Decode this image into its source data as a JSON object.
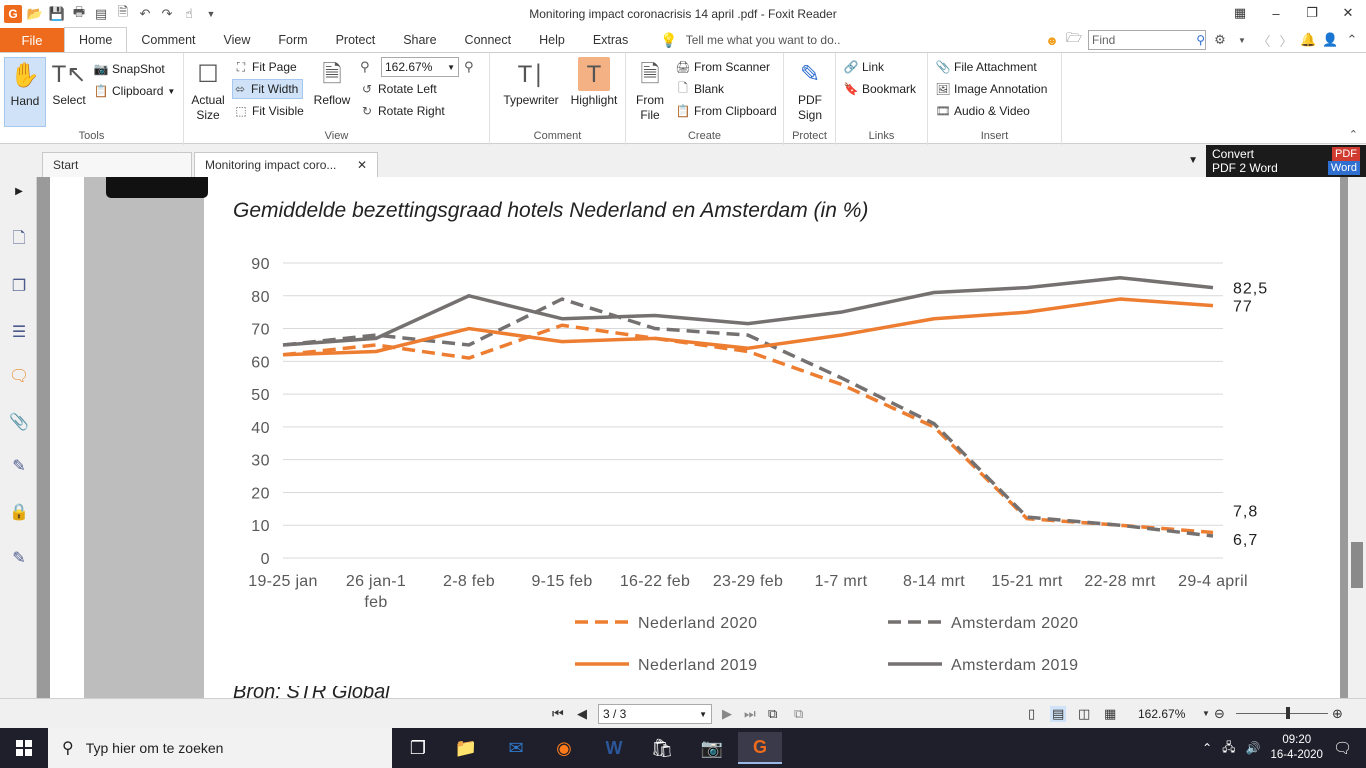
{
  "window": {
    "title": "Monitoring impact coronacrisis 14 april .pdf - Foxit Reader",
    "app_logo": "G",
    "controls": [
      "restore-small-icon",
      "minimize-icon",
      "restore-icon",
      "close-icon"
    ]
  },
  "ribbon_tabs": {
    "file": "File",
    "tabs": [
      "Home",
      "Comment",
      "View",
      "Form",
      "Protect",
      "Share",
      "Connect",
      "Help",
      "Extras"
    ],
    "active": "Home",
    "tell_me": "Tell me what you want to do..",
    "find_placeholder": "Find"
  },
  "ribbon": {
    "tools": {
      "label": "Tools",
      "hand": "Hand",
      "select": "Select",
      "snapshot": "SnapShot",
      "clipboard": "Clipboard"
    },
    "view": {
      "label": "View",
      "actual_size_1": "Actual",
      "actual_size_2": "Size",
      "fit_page": "Fit Page",
      "fit_width": "Fit Width",
      "fit_visible": "Fit Visible",
      "reflow": "Reflow",
      "zoom": "162.67%",
      "rotate_left": "Rotate Left",
      "rotate_right": "Rotate Right"
    },
    "comment": {
      "label": "Comment",
      "typewriter": "Typewriter",
      "highlight": "Highlight"
    },
    "create": {
      "label": "Create",
      "from_file_1": "From",
      "from_file_2": "File",
      "from_scanner": "From Scanner",
      "blank": "Blank",
      "from_clipboard": "From Clipboard"
    },
    "protect": {
      "label": "Protect",
      "pdf_sign_1": "PDF",
      "pdf_sign_2": "Sign"
    },
    "links": {
      "label": "Links",
      "link": "Link",
      "bookmark": "Bookmark"
    },
    "insert": {
      "label": "Insert",
      "file_attachment": "File Attachment",
      "image_annotation": "Image Annotation",
      "audio_video": "Audio & Video"
    }
  },
  "doc_tabs": {
    "start": "Start",
    "document": "Monitoring impact coro...",
    "convert_1": "Convert",
    "convert_2": "PDF 2 Word",
    "badge_pdf": "PDF",
    "badge_word": "Word"
  },
  "document": {
    "cutoff_text": "Bron: STR Global"
  },
  "chart_data": {
    "type": "line",
    "title": "Gemiddelde bezettingsgraad hotels Nederland en Amsterdam (in %)",
    "categories": [
      "19-25 jan",
      "26 jan-1 feb",
      "2-8 feb",
      "9-15 feb",
      "16-22 feb",
      "23-29 feb",
      "1-7 mrt",
      "8-14 mrt",
      "15-21 mrt",
      "22-28 mrt",
      "29-4 april"
    ],
    "category_lines": [
      [
        "19-25 jan"
      ],
      [
        "26 jan-1",
        "feb"
      ],
      [
        "2-8 feb"
      ],
      [
        "9-15 feb"
      ],
      [
        "16-22 feb"
      ],
      [
        "23-29 feb"
      ],
      [
        "1-7 mrt"
      ],
      [
        "8-14 mrt"
      ],
      [
        "15-21 mrt"
      ],
      [
        "22-28 mrt"
      ],
      [
        "29-4 april"
      ]
    ],
    "ylim": [
      0,
      90
    ],
    "yticks": [
      "0",
      "10",
      "20",
      "30",
      "40",
      "50",
      "60",
      "70",
      "80",
      "90"
    ],
    "grid": true,
    "legend_position": "bottom",
    "series": [
      {
        "name": "Nederland 2020",
        "color": "#ed7d31",
        "dash": true,
        "values": [
          62,
          65,
          61,
          71,
          67,
          63,
          53,
          40,
          12,
          10,
          7.8
        ]
      },
      {
        "name": "Amsterdam 2020",
        "color": "#757171",
        "dash": true,
        "values": [
          65,
          68,
          65,
          79,
          70,
          68,
          55,
          41,
          12.5,
          10,
          6.7
        ]
      },
      {
        "name": "Nederland 2019",
        "color": "#ed7d31",
        "dash": false,
        "values": [
          62,
          63,
          70,
          66,
          67,
          64,
          68,
          73,
          75,
          79,
          77
        ]
      },
      {
        "name": "Amsterdam 2019",
        "color": "#757171",
        "dash": false,
        "values": [
          65,
          67,
          80,
          73,
          74,
          71.5,
          75,
          81,
          82.5,
          85.5,
          82.5
        ]
      }
    ],
    "end_labels": [
      "82,5",
      "77",
      "7,8",
      "6,7"
    ]
  },
  "statusbar": {
    "page": "3 / 3",
    "zoom": "162.67%"
  },
  "taskbar": {
    "search_placeholder": "Typ hier om te zoeken",
    "time": "09:20",
    "date": "16-4-2020"
  }
}
